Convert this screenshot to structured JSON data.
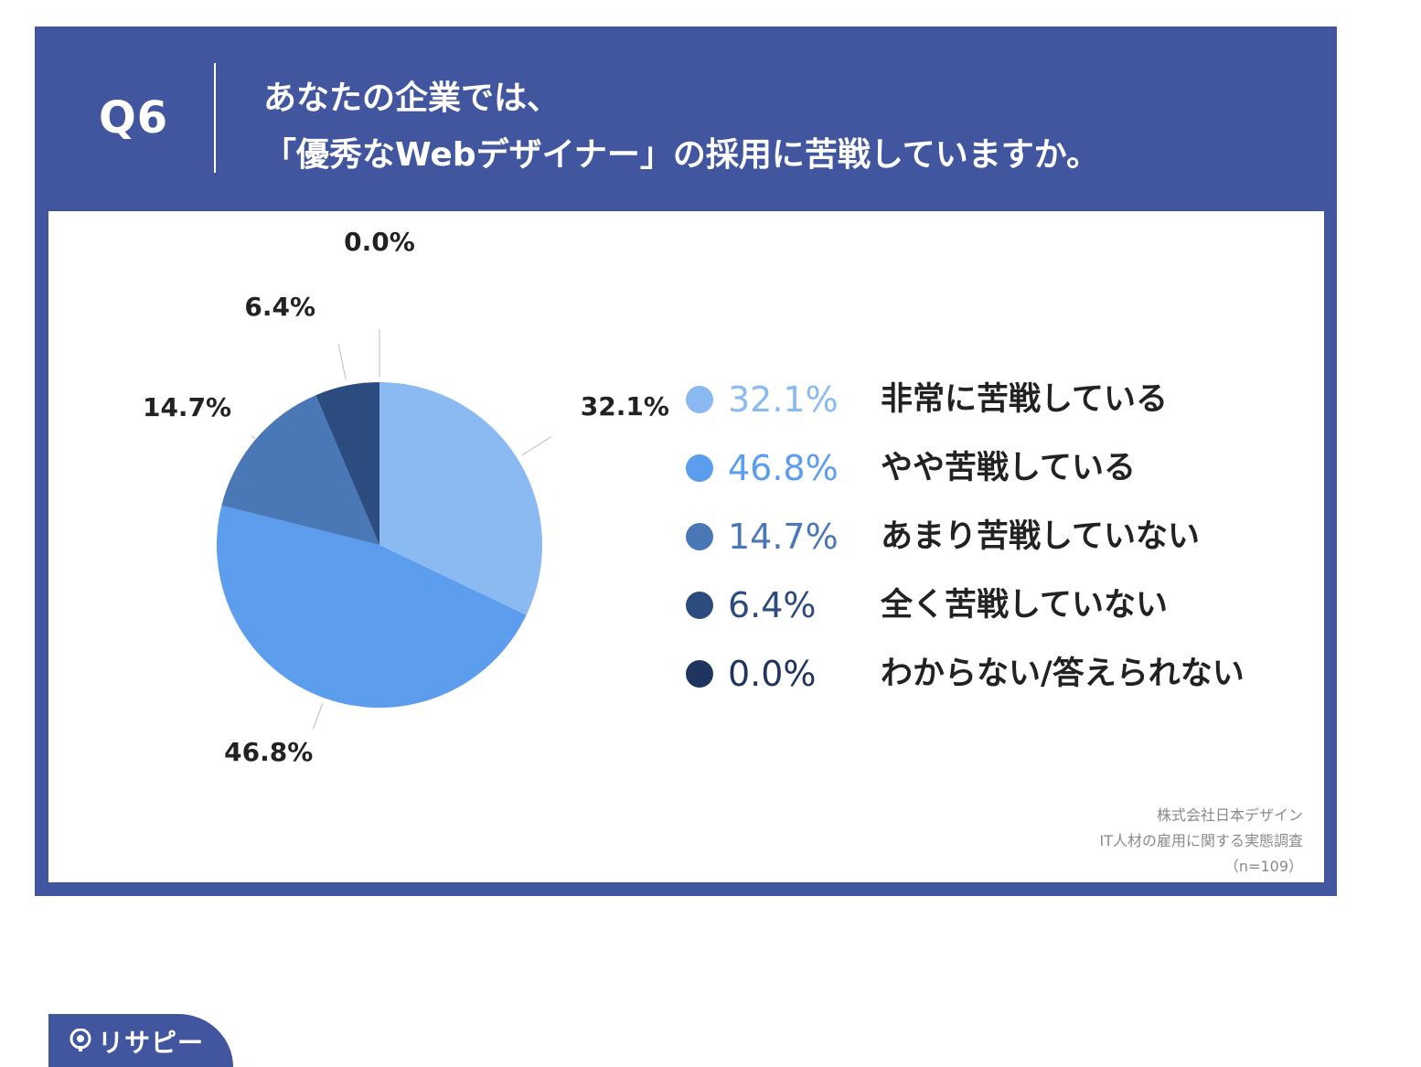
{
  "header": {
    "question_number": "Q6",
    "title_line1": "あなたの企業では、",
    "title_line2": "「優秀なWebデザイナー」の採用に苦戦していますか。"
  },
  "chart_data": {
    "type": "pie",
    "categories": [
      "非常に苦戦している",
      "やや苦戦している",
      "あまり苦戦していない",
      "全く苦戦していない",
      "わからない/答えられない"
    ],
    "values": [
      32.1,
      46.8,
      14.7,
      6.4,
      0.0
    ],
    "labels": [
      "32.1%",
      "46.8%",
      "14.7%",
      "6.4%",
      "0.0%"
    ],
    "colors": [
      "#8bbaf2",
      "#5d9ded",
      "#4a77b6",
      "#2c4b7f",
      "#1f355f"
    ],
    "start": "12 o'clock",
    "direction": "clockwise",
    "legend_position": "right"
  },
  "source": {
    "line1": "株式会社日本デザイン",
    "line2": "IT人材の雇用に関する実態調査",
    "line3": "（n=109）"
  },
  "brand": {
    "name": "リサピー"
  }
}
